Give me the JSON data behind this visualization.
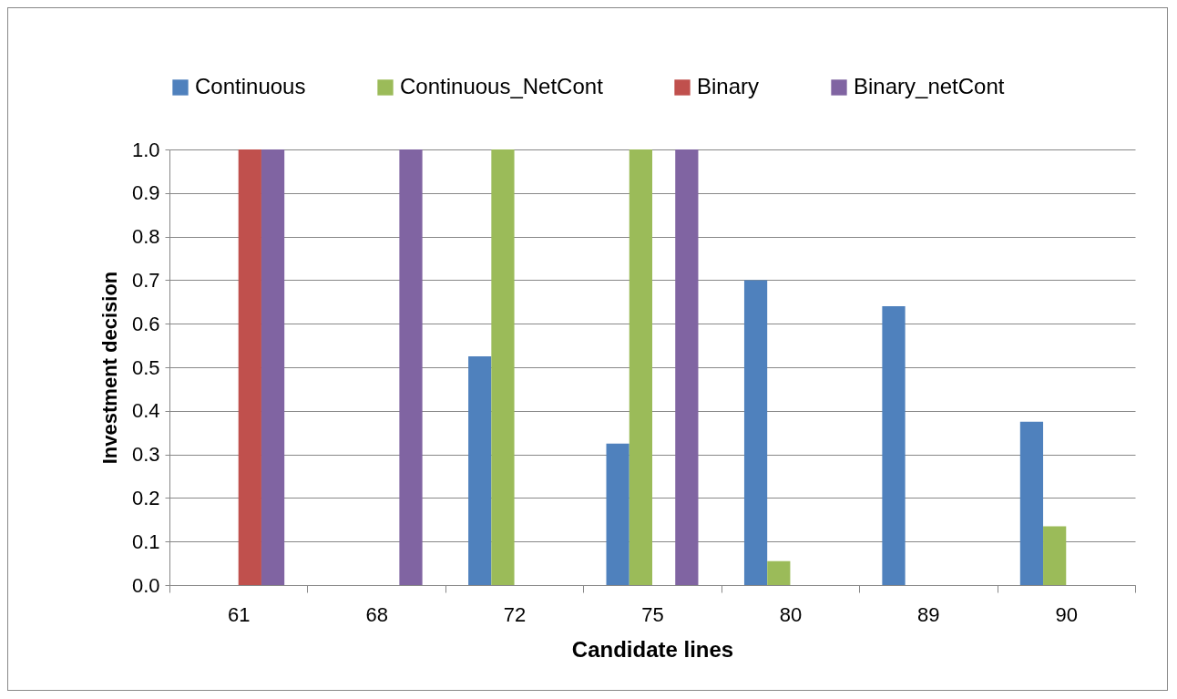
{
  "chart_data": {
    "type": "bar",
    "xlabel": "Candidate lines",
    "ylabel": "Investment decision",
    "categories": [
      "61",
      "68",
      "72",
      "75",
      "80",
      "89",
      "90"
    ],
    "series": [
      {
        "name": "Continuous",
        "color": "#4f81bd",
        "values": [
          0,
          0,
          0.525,
          0.325,
          0.7,
          0.64,
          0.375
        ]
      },
      {
        "name": "Continuous_NetCont",
        "color": "#9bbb59",
        "values": [
          0,
          0,
          1,
          1,
          0.055,
          0,
          0.135
        ]
      },
      {
        "name": "Binary",
        "color": "#c0504d",
        "values": [
          1,
          0,
          0,
          0,
          0,
          0,
          0
        ]
      },
      {
        "name": "Binary_netCont",
        "color": "#8064a2",
        "values": [
          1,
          1,
          0,
          1,
          0,
          0,
          0
        ]
      }
    ],
    "ylim": [
      0,
      1
    ],
    "yticks": [
      {
        "value": 0,
        "label": "0.0"
      },
      0.1,
      0.2,
      0.3,
      0.4,
      0.5,
      0.6,
      0.7,
      0.8,
      0.9,
      {
        "value": 1,
        "label": "1.0"
      }
    ],
    "grid": "y",
    "legend": "top"
  }
}
